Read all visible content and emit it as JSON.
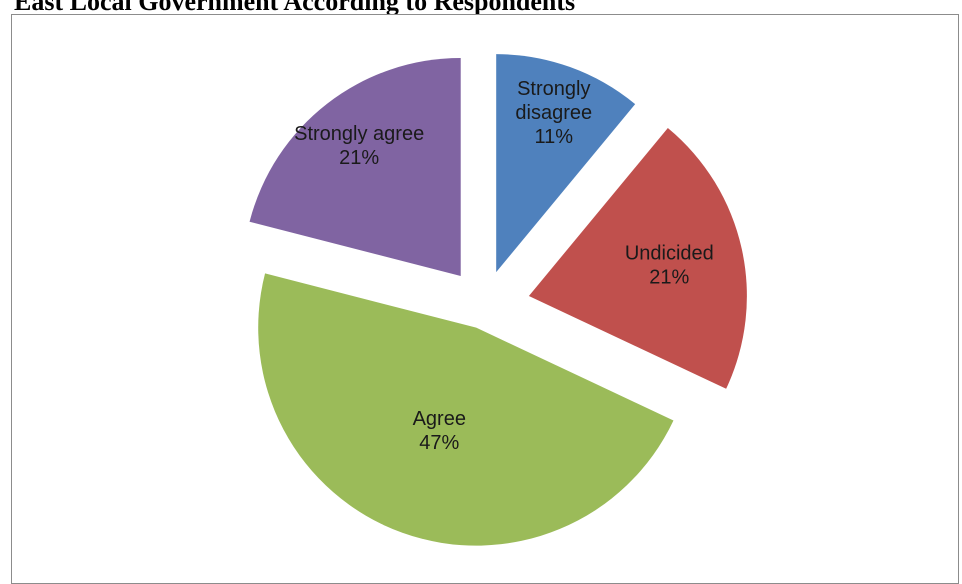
{
  "title": "East Local Government According to Respondents",
  "chart_data": {
    "type": "pie",
    "exploded": true,
    "slices": [
      {
        "category": "Strongly disagree",
        "label_lines": [
          "Strongly",
          "disagree"
        ],
        "value": 11,
        "percent_label": "11%",
        "color": "#4F81BD"
      },
      {
        "category": "Undicided",
        "label_lines": [
          "Undicided"
        ],
        "value": 21,
        "percent_label": "21%",
        "color": "#C0504D"
      },
      {
        "category": "Agree",
        "label_lines": [
          "Agree"
        ],
        "value": 47,
        "percent_label": "47%",
        "color": "#9BBB59"
      },
      {
        "category": "Strongly agree",
        "label_lines": [
          "Strongly agree"
        ],
        "value": 21,
        "percent_label": "21%",
        "color": "#8064A2"
      }
    ]
  }
}
